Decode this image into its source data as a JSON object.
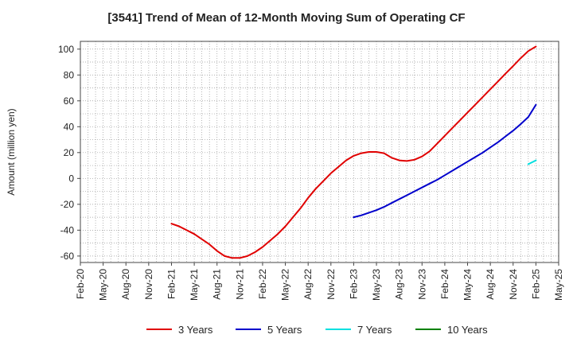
{
  "chart_data": {
    "type": "line",
    "title": "[3541]  Trend of Mean of 12-Month Moving Sum of Operating CF",
    "xlabel": "",
    "ylabel": "Amount (million yen)",
    "x_tick_labels": [
      "Feb-20",
      "May-20",
      "Aug-20",
      "Nov-20",
      "Feb-21",
      "May-21",
      "Aug-21",
      "Nov-21",
      "Feb-22",
      "May-22",
      "Aug-22",
      "Nov-22",
      "Feb-23",
      "May-23",
      "Aug-23",
      "Nov-23",
      "Feb-24",
      "May-24",
      "Aug-24",
      "Nov-24",
      "Feb-25",
      "May-25"
    ],
    "y_ticks": [
      -60,
      -40,
      -20,
      0,
      20,
      40,
      60,
      80,
      100
    ],
    "ylim": [
      -65,
      106
    ],
    "grid": true,
    "legend_position": "bottom",
    "series": [
      {
        "name": "3 Years",
        "color": "#e00000",
        "x": [
          "Feb-21",
          "Mar-21",
          "Apr-21",
          "May-21",
          "Jun-21",
          "Jul-21",
          "Aug-21",
          "Sep-21",
          "Oct-21",
          "Nov-21",
          "Dec-21",
          "Jan-22",
          "Feb-22",
          "Mar-22",
          "Apr-22",
          "May-22",
          "Jun-22",
          "Jul-22",
          "Aug-22",
          "Sep-22",
          "Oct-22",
          "Nov-22",
          "Dec-22",
          "Jan-23",
          "Feb-23",
          "Mar-23",
          "Apr-23",
          "May-23",
          "Jun-23",
          "Jul-23",
          "Aug-23",
          "Sep-23",
          "Oct-23",
          "Nov-23",
          "Dec-23",
          "Jan-24",
          "Feb-24",
          "Mar-24",
          "Apr-24",
          "May-24",
          "Jun-24",
          "Jul-24",
          "Aug-24",
          "Sep-24",
          "Oct-24",
          "Nov-24",
          "Dec-24",
          "Jan-25",
          "Feb-25"
        ],
        "values": [
          -35,
          -37,
          -40,
          -43,
          -47,
          -51,
          -56,
          -60,
          -61.5,
          -61.5,
          -60,
          -57,
          -53,
          -48,
          -43,
          -37,
          -30,
          -23,
          -15,
          -8,
          -2,
          4,
          9,
          14,
          17.5,
          19.5,
          20.5,
          20.5,
          19.5,
          16,
          14,
          13.5,
          14.5,
          17,
          21,
          27,
          33,
          39,
          45,
          51,
          57,
          63,
          69,
          75,
          81,
          87,
          93,
          98.5,
          102
        ]
      },
      {
        "name": "5 Years",
        "color": "#0000cc",
        "x": [
          "Feb-23",
          "Mar-23",
          "Apr-23",
          "May-23",
          "Jun-23",
          "Jul-23",
          "Aug-23",
          "Sep-23",
          "Oct-23",
          "Nov-23",
          "Dec-23",
          "Jan-24",
          "Feb-24",
          "Mar-24",
          "Apr-24",
          "May-24",
          "Jun-24",
          "Jul-24",
          "Aug-24",
          "Sep-24",
          "Oct-24",
          "Nov-24",
          "Dec-24",
          "Jan-25",
          "Feb-25"
        ],
        "values": [
          -30,
          -28.5,
          -26.5,
          -24.5,
          -22,
          -19,
          -16,
          -13,
          -10,
          -7,
          -4,
          -1,
          2.5,
          6,
          9.5,
          13,
          16.5,
          20,
          24,
          28,
          32.5,
          37,
          42,
          47.5,
          57
        ]
      },
      {
        "name": "7 Years",
        "color": "#00e0e0",
        "x": [
          "Jan-25",
          "Feb-25"
        ],
        "values": [
          11,
          14
        ]
      },
      {
        "name": "10 Years",
        "color": "#008000",
        "x": [],
        "values": []
      }
    ]
  }
}
